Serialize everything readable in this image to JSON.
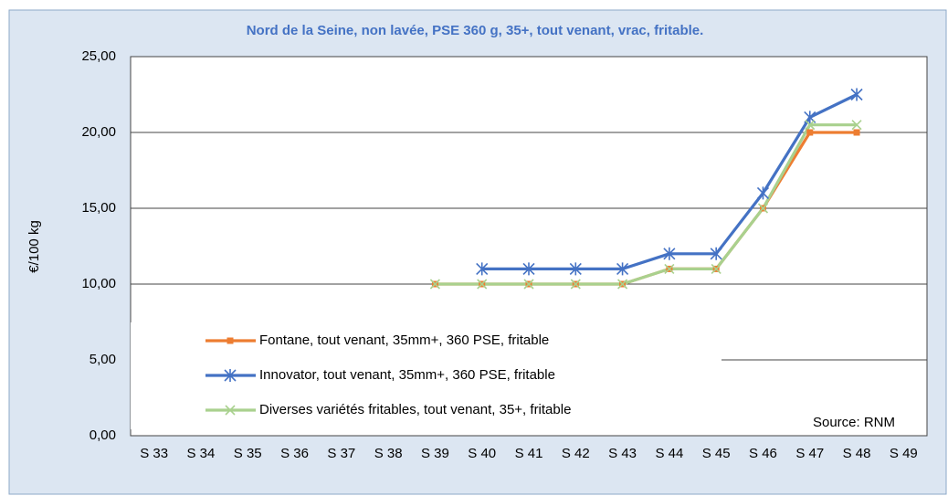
{
  "chart_data": {
    "type": "line",
    "title": "Nord de la Seine, non lavée, PSE 360 g, 35+, tout venant, vrac, fritable.",
    "y_label": "€/100 kg",
    "annotation": "Source: RNM",
    "categories": [
      "S 33",
      "S 34",
      "S 35",
      "S 36",
      "S 37",
      "S 38",
      "S 39",
      "S 40",
      "S 41",
      "S 42",
      "S 43",
      "S 44",
      "S 45",
      "S 46",
      "S 47",
      "S 48",
      "S 49"
    ],
    "series": [
      {
        "name": "Fontane, tout venant, 35mm+, 360 PSE, fritable",
        "color": "#ED7D31",
        "marker": "square",
        "values": [
          null,
          null,
          null,
          null,
          null,
          null,
          10,
          10,
          10,
          10,
          10,
          11,
          11,
          15,
          20,
          20,
          null
        ]
      },
      {
        "name": "Innovator, tout venant, 35mm+, 360 PSE,  fritable",
        "color": "#4472C4",
        "marker": "star",
        "values": [
          null,
          null,
          null,
          null,
          null,
          null,
          null,
          11,
          11,
          11,
          11,
          12,
          12,
          16,
          21,
          22.5,
          null
        ]
      },
      {
        "name": "Diverses variétés fritables, tout venant, 35+, fritable",
        "color": "#A9D18E",
        "marker": "x",
        "values": [
          null,
          null,
          null,
          null,
          null,
          null,
          10,
          10,
          10,
          10,
          10,
          11,
          11,
          15,
          20.5,
          20.5,
          null
        ]
      }
    ],
    "ylim": [
      0,
      25
    ],
    "yticks": [
      {
        "value": 0,
        "label": "0,00"
      },
      {
        "value": 5,
        "label": "5,00"
      },
      {
        "value": 10,
        "label": "10,00"
      },
      {
        "value": 15,
        "label": "15,00"
      },
      {
        "value": 20,
        "label": "20,00"
      },
      {
        "value": 25,
        "label": "25,00"
      }
    ],
    "grid": true,
    "legend": "lower left"
  }
}
